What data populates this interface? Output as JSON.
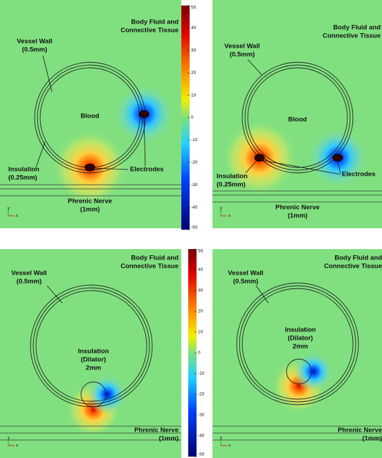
{
  "panels": [
    {
      "tissue": [
        "Body Fluid and",
        "Connective Tissue"
      ],
      "vessel_wall": [
        "Vessel Wall",
        "(0.5mm)"
      ],
      "blood": "Blood",
      "insulation": [
        "Insulation",
        "(0.25mm)"
      ],
      "electrodes": "Electrodes",
      "nerve": [
        "Phrenic Nerve",
        "(1mm)"
      ],
      "axes": [
        "y",
        "x"
      ]
    },
    {
      "tissue": [
        "Body Fluid and",
        "Connective Tissue"
      ],
      "vessel_wall": [
        "Vessel Wall",
        "(0.5mm)"
      ],
      "blood": "Blood",
      "insulation": [
        "Insulation",
        "(0.25mm)"
      ],
      "electrodes": "Electrodes",
      "nerve": [
        "Phrenic Nerve",
        "(1mm)"
      ],
      "axes": [
        "y",
        "x"
      ]
    },
    {
      "tissue": [
        "Body Fluid and",
        "Connective Tissue"
      ],
      "vessel_wall": [
        "Vessel Wall",
        "(0.5mm)"
      ],
      "insulation": [
        "Insulation",
        "(Dilator)",
        "2mm"
      ],
      "nerve": [
        "Phrenic Nerve",
        "(1mm)"
      ],
      "axes": [
        "y",
        "x"
      ]
    },
    {
      "tissue": [
        "Body Fluid and",
        "Connective Tissue"
      ],
      "vessel_wall": [
        "Vessel Wall",
        "(0.5mm)"
      ],
      "insulation": [
        "Insulation",
        "(Dilator)",
        "2mm"
      ],
      "nerve": [
        "Phrenic Nerve",
        "(1mm)"
      ],
      "axes": [
        "y",
        "x"
      ]
    }
  ],
  "colorbars": [
    {
      "ticks": [
        50,
        40,
        30,
        20,
        10,
        0,
        -10,
        -20,
        -30,
        -40,
        -50
      ]
    },
    {
      "ticks": [
        50,
        40,
        30,
        20,
        10,
        0,
        -10,
        -20,
        -30,
        -40,
        -50
      ]
    }
  ]
}
